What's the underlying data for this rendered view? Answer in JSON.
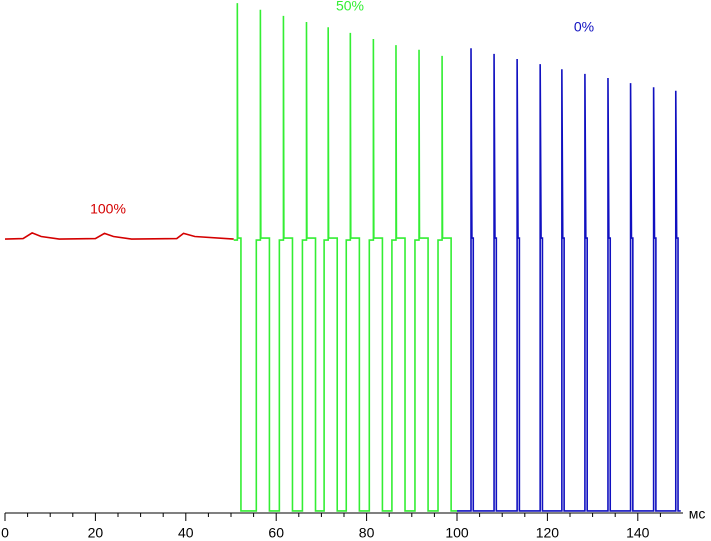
{
  "chart_data": {
    "type": "line",
    "xlabel": "мс",
    "xlim": [
      0,
      150
    ],
    "ylim": [
      0,
      100
    ],
    "xticks": [
      0,
      20,
      40,
      60,
      80,
      100,
      120,
      140
    ],
    "xticks_minor": [
      5,
      10,
      15,
      25,
      30,
      35,
      45,
      50,
      55,
      65,
      70,
      75,
      85,
      90,
      95,
      105,
      110,
      115,
      125,
      130,
      135,
      145
    ],
    "series": [
      {
        "name": "100%",
        "color": "#d40000",
        "x": [
          0,
          4,
          6,
          8,
          12,
          20,
          22,
          24,
          28,
          38,
          39.5,
          42,
          50.6
        ],
        "values": [
          53.4,
          53.5,
          54.6,
          53.9,
          53.4,
          53.5,
          54.5,
          53.9,
          53.4,
          53.5,
          54.5,
          53.9,
          53.4
        ]
      },
      {
        "name": "50%",
        "color": "#33ee33",
        "x": [
          50.6,
          51.4,
          51.4,
          51.5,
          52.2,
          52.2,
          55.6,
          55.6,
          56.5,
          56.5,
          56.6,
          58.5,
          58.5,
          60.7,
          60.7,
          61.6,
          61.6,
          61.7,
          63.6,
          63.6,
          65.8,
          65.8,
          66.7,
          66.7,
          66.8,
          68.7,
          68.7,
          70.6,
          70.6,
          71.5,
          71.5,
          71.6,
          73.5,
          73.5,
          75.5,
          75.5,
          76.4,
          76.4,
          76.5,
          78.4,
          78.4,
          80.6,
          80.6,
          81.5,
          81.5,
          81.6,
          83.5,
          83.5,
          85.6,
          85.6,
          86.5,
          86.5,
          86.6,
          88.5,
          88.5,
          90.7,
          90.7,
          91.6,
          91.6,
          91.7,
          93.6,
          93.6,
          95.8,
          95.8,
          96.7,
          96.7,
          96.8,
          98.7,
          98.7,
          100
        ],
        "values": [
          53.2,
          53.2,
          99.4,
          53.6,
          53.6,
          0.4,
          0.4,
          53.2,
          53.2,
          98.1,
          53.6,
          53.6,
          0.4,
          0.4,
          53.2,
          53.2,
          96.9,
          53.6,
          53.6,
          0.4,
          0.4,
          53.2,
          53.2,
          95.7,
          53.6,
          53.6,
          0.4,
          0.4,
          53.2,
          53.2,
          94.7,
          53.6,
          53.6,
          0.4,
          0.4,
          53.2,
          53.2,
          93.6,
          53.6,
          53.6,
          0.4,
          0.4,
          53.2,
          53.2,
          92.4,
          53.6,
          53.6,
          0.4,
          0.4,
          53.2,
          53.2,
          91.2,
          53.6,
          53.6,
          0.4,
          0.4,
          53.2,
          53.2,
          90.3,
          53.6,
          53.6,
          0.4,
          0.4,
          53.2,
          53.2,
          89.1,
          53.6,
          53.6,
          0.4,
          0.4
        ]
      },
      {
        "name": "0%",
        "color": "#1010c0",
        "x": [
          100,
          103.1,
          103.1,
          103.3,
          103.6,
          103.6,
          108.2,
          108.2,
          108.4,
          108.7,
          108.7,
          113.3,
          113.3,
          113.5,
          113.8,
          113.8,
          118.4,
          118.4,
          118.6,
          118.9,
          118.9,
          123.2,
          123.2,
          123.4,
          123.7,
          123.7,
          128.3,
          128.3,
          128.5,
          128.8,
          128.8,
          133.4,
          133.4,
          133.6,
          133.9,
          133.9,
          138.4,
          138.4,
          138.6,
          138.9,
          138.9,
          143.5,
          143.5,
          143.7,
          144.0,
          144.0,
          148.4,
          148.4,
          148.6,
          148.9,
          148.9,
          149.5
        ],
        "values": [
          0.4,
          0.4,
          90.6,
          53.6,
          53.6,
          0.4,
          0.4,
          89.5,
          53.6,
          53.6,
          0.4,
          0.4,
          88.5,
          53.6,
          53.6,
          0.4,
          0.4,
          87.5,
          53.6,
          53.6,
          0.4,
          0.4,
          86.5,
          53.6,
          53.6,
          0.4,
          0.4,
          85.6,
          53.6,
          53.6,
          0.4,
          0.4,
          84.8,
          53.6,
          53.6,
          0.4,
          0.4,
          83.8,
          53.6,
          53.6,
          0.4,
          0.4,
          83.0,
          53.6,
          53.6,
          0.4,
          0.4,
          82.3,
          53.6,
          53.6,
          0.4,
          0.4
        ]
      }
    ]
  }
}
